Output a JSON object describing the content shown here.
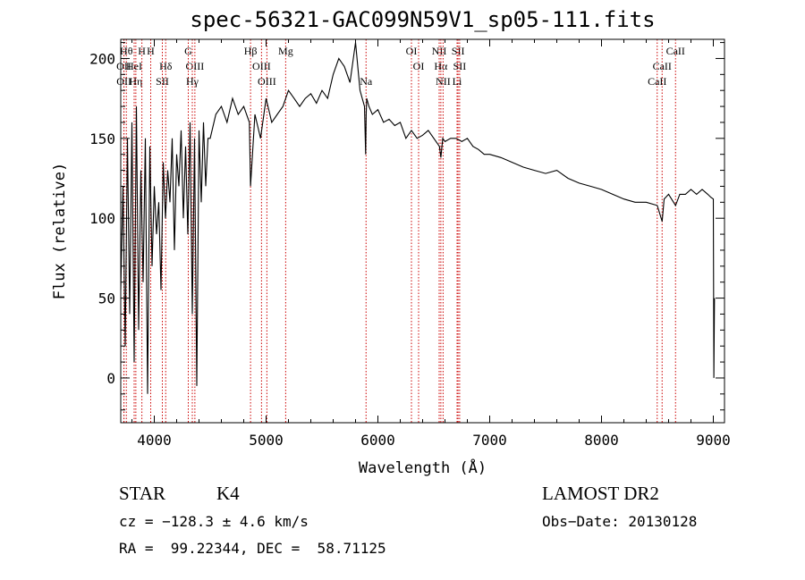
{
  "chart_data": {
    "type": "line",
    "title": "spec-56321-GAC099N59V1_sp05-111.fits",
    "xlabel": "Wavelength (Å)",
    "ylabel": "Flux (relative)",
    "xlim": [
      3700,
      9100
    ],
    "ylim": [
      -28,
      212
    ],
    "xticks": [
      4000,
      5000,
      6000,
      7000,
      8000,
      9000
    ],
    "yticks": [
      0,
      50,
      100,
      150,
      200
    ],
    "line_color": "#000000",
    "marker_color": "#cc0000",
    "series": [
      {
        "values_note": "",
        "x": [
          3700,
          3720,
          3740,
          3760,
          3780,
          3800,
          3820,
          3840,
          3860,
          3880,
          3900,
          3920,
          3940,
          3960,
          3980,
          4000,
          4020,
          4040,
          4060,
          4080,
          4100,
          4120,
          4140,
          4160,
          4180,
          4200,
          4220,
          4240,
          4260,
          4280,
          4300,
          4320,
          4340,
          4360,
          4380,
          4400,
          4420,
          4440,
          4460,
          4480,
          4500,
          4550,
          4600,
          4650,
          4700,
          4750,
          4800,
          4850,
          4861,
          4900,
          4950,
          5000,
          5050,
          5100,
          5150,
          5200,
          5250,
          5300,
          5350,
          5400,
          5450,
          5500,
          5550,
          5600,
          5650,
          5700,
          5750,
          5800,
          5820,
          5840,
          5860,
          5880,
          5890,
          5895,
          5900,
          5920,
          5950,
          6000,
          6050,
          6100,
          6150,
          6200,
          6250,
          6300,
          6350,
          6400,
          6450,
          6500,
          6550,
          6563,
          6580,
          6600,
          6650,
          6700,
          6750,
          6800,
          6850,
          6900,
          6950,
          7000,
          7100,
          7200,
          7300,
          7400,
          7500,
          7600,
          7700,
          7800,
          7900,
          8000,
          8100,
          8200,
          8300,
          8400,
          8498,
          8542,
          8560,
          8600,
          8662,
          8700,
          8750,
          8800,
          8850,
          8900,
          8950,
          8980,
          9000,
          9005,
          9010
        ],
        "y": [
          55,
          120,
          20,
          150,
          40,
          160,
          10,
          170,
          30,
          130,
          60,
          150,
          -10,
          145,
          70,
          120,
          90,
          110,
          55,
          135,
          100,
          130,
          110,
          150,
          80,
          140,
          120,
          155,
          100,
          145,
          90,
          160,
          40,
          150,
          -5,
          155,
          110,
          160,
          120,
          150,
          150,
          165,
          170,
          160,
          175,
          165,
          170,
          160,
          120,
          165,
          150,
          175,
          160,
          165,
          170,
          180,
          175,
          170,
          175,
          178,
          172,
          180,
          175,
          190,
          200,
          195,
          185,
          210,
          195,
          180,
          175,
          170,
          140,
          165,
          175,
          170,
          165,
          168,
          160,
          162,
          158,
          160,
          150,
          155,
          150,
          152,
          155,
          150,
          145,
          138,
          150,
          148,
          150,
          150,
          148,
          150,
          145,
          143,
          140,
          140,
          138,
          135,
          132,
          130,
          128,
          130,
          125,
          122,
          120,
          118,
          115,
          112,
          110,
          110,
          108,
          98,
          112,
          115,
          108,
          115,
          115,
          118,
          115,
          118,
          115,
          113,
          112,
          0,
          50
        ]
      }
    ],
    "line_markers": [
      {
        "wavelength": 3750,
        "label": "Hθ",
        "row": 0
      },
      {
        "wavelength": 3728,
        "label": "OII",
        "row": 1
      },
      {
        "wavelength": 3729,
        "label": "OII",
        "row": 2
      },
      {
        "wavelength": 3820,
        "label": "HeI",
        "row": 1
      },
      {
        "wavelength": 3835,
        "label": "Hη",
        "row": 2
      },
      {
        "wavelength": 3889,
        "label": "H",
        "row": 0
      },
      {
        "wavelength": 3968,
        "label": "H",
        "row": 0
      },
      {
        "wavelength": 4102,
        "label": "Hδ",
        "row": 1
      },
      {
        "wavelength": 4072,
        "label": "SII",
        "row": 2
      },
      {
        "wavelength": 4304,
        "label": "G",
        "row": 0
      },
      {
        "wavelength": 4363,
        "label": "OIII",
        "row": 1
      },
      {
        "wavelength": 4340,
        "label": "Hγ",
        "row": 2
      },
      {
        "wavelength": 4861,
        "label": "Hβ",
        "row": 0
      },
      {
        "wavelength": 4959,
        "label": "OIII",
        "row": 1
      },
      {
        "wavelength": 5007,
        "label": "OIII",
        "row": 2
      },
      {
        "wavelength": 5175,
        "label": "Mg",
        "row": 0
      },
      {
        "wavelength": 5894,
        "label": "Na",
        "row": 2
      },
      {
        "wavelength": 6300,
        "label": "OI",
        "row": 0
      },
      {
        "wavelength": 6364,
        "label": "OI",
        "row": 1
      },
      {
        "wavelength": 6548,
        "label": "NII",
        "row": 0
      },
      {
        "wavelength": 6563,
        "label": "Hα",
        "row": 1
      },
      {
        "wavelength": 6583,
        "label": "NII",
        "row": 2
      },
      {
        "wavelength": 6717,
        "label": "SII",
        "row": 0
      },
      {
        "wavelength": 6731,
        "label": "SII",
        "row": 1
      },
      {
        "wavelength": 6708,
        "label": "Li",
        "row": 2
      },
      {
        "wavelength": 8662,
        "label": "CaII",
        "row": 0
      },
      {
        "wavelength": 8542,
        "label": "CaII",
        "row": 1
      },
      {
        "wavelength": 8498,
        "label": "CaII",
        "row": 2
      }
    ]
  },
  "info": {
    "class_label": "STAR",
    "subclass": "K4",
    "survey": "LAMOST DR2",
    "cz_text": "cz = −128.3 ± 4.6 km/s",
    "obs_date_text": "Obs−Date: 20130128",
    "radec_text": "RA =  99.22344, DEC =  58.71125"
  }
}
